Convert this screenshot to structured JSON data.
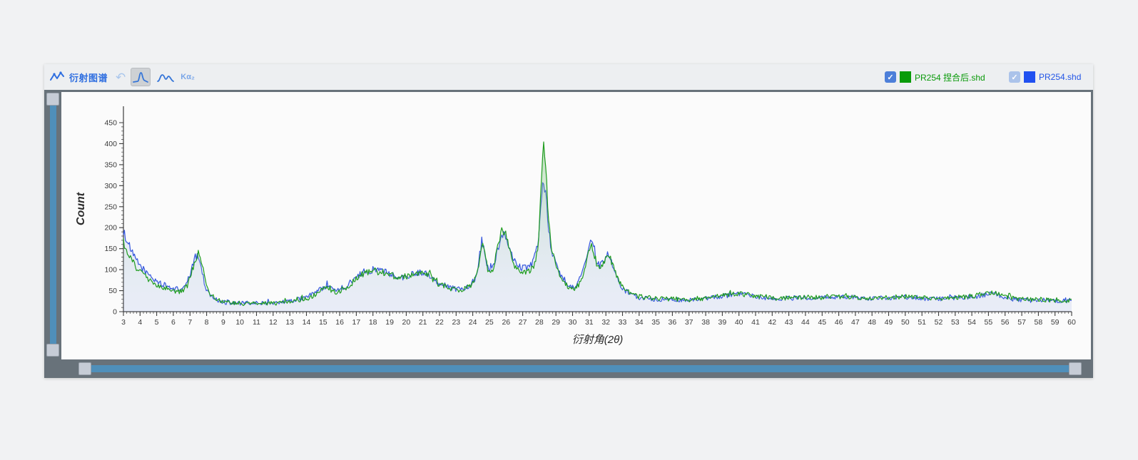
{
  "toolbar": {
    "title": "衍射图谱",
    "kalpha2_label": "Kα₂"
  },
  "icons": {
    "check": "✓",
    "undo": "↶"
  },
  "legend": [
    {
      "label": "PR254 捏合后.shd",
      "checked": true,
      "checkbox_color": "#4d7fd9",
      "swatch_color": "#0a9b0a",
      "text_color": "#0a9a0a"
    },
    {
      "label": "PR254.shd",
      "checked": true,
      "checkbox_color": "#abc3ea",
      "swatch_color": "#2050f0",
      "text_color": "#2255e6"
    }
  ],
  "chart_data": {
    "type": "line",
    "title": "",
    "xlabel": "衍射角(2θ)",
    "ylabel": "Count",
    "xlim": [
      3,
      60
    ],
    "ylim": [
      0,
      450
    ],
    "x_major_step": 1,
    "x_minor_step": 0.2,
    "y_major_step": 50,
    "y_minor_step": 10,
    "grid": false,
    "legend_position": "top-right",
    "series": [
      {
        "name": "PR254.shd",
        "color": "#3456dd",
        "fill": "rgba(70,105,220,0.10)",
        "noise": 8,
        "points": [
          [
            3,
            192
          ],
          [
            3.3,
            160
          ],
          [
            3.6,
            133
          ],
          [
            4,
            110
          ],
          [
            4.4,
            92
          ],
          [
            4.8,
            78
          ],
          [
            5.2,
            68
          ],
          [
            5.6,
            60
          ],
          [
            6,
            55
          ],
          [
            6.4,
            53
          ],
          [
            6.8,
            64
          ],
          [
            7.05,
            95
          ],
          [
            7.3,
            128
          ],
          [
            7.5,
            138
          ],
          [
            7.7,
            100
          ],
          [
            7.9,
            62
          ],
          [
            8.2,
            40
          ],
          [
            8.6,
            28
          ],
          [
            9,
            23
          ],
          [
            9.5,
            21
          ],
          [
            10,
            20
          ],
          [
            10.5,
            20
          ],
          [
            11,
            20
          ],
          [
            11.5,
            21
          ],
          [
            12,
            22
          ],
          [
            12.5,
            23
          ],
          [
            13,
            25
          ],
          [
            13.5,
            29
          ],
          [
            14,
            35
          ],
          [
            14.5,
            45
          ],
          [
            14.9,
            55
          ],
          [
            15.2,
            60
          ],
          [
            15.5,
            54
          ],
          [
            15.8,
            51
          ],
          [
            16.2,
            57
          ],
          [
            16.6,
            68
          ],
          [
            17,
            83
          ],
          [
            17.4,
            93
          ],
          [
            17.8,
            98
          ],
          [
            18.2,
            99
          ],
          [
            18.6,
            96
          ],
          [
            19,
            91
          ],
          [
            19.4,
            85
          ],
          [
            19.8,
            82
          ],
          [
            20.2,
            86
          ],
          [
            20.6,
            91
          ],
          [
            21,
            94
          ],
          [
            21.4,
            88
          ],
          [
            21.8,
            72
          ],
          [
            22.2,
            64
          ],
          [
            22.6,
            58
          ],
          [
            23,
            54
          ],
          [
            23.4,
            56
          ],
          [
            23.8,
            62
          ],
          [
            24.1,
            75
          ],
          [
            24.35,
            115
          ],
          [
            24.55,
            172
          ],
          [
            24.75,
            135
          ],
          [
            24.95,
            96
          ],
          [
            25.2,
            104
          ],
          [
            25.5,
            148
          ],
          [
            25.75,
            186
          ],
          [
            25.95,
            178
          ],
          [
            26.2,
            148
          ],
          [
            26.5,
            118
          ],
          [
            26.8,
            108
          ],
          [
            27.1,
            104
          ],
          [
            27.4,
            108
          ],
          [
            27.7,
            122
          ],
          [
            27.95,
            175
          ],
          [
            28.1,
            268
          ],
          [
            28.25,
            308
          ],
          [
            28.4,
            278
          ],
          [
            28.55,
            200
          ],
          [
            28.75,
            142
          ],
          [
            29,
            112
          ],
          [
            29.3,
            85
          ],
          [
            29.6,
            68
          ],
          [
            29.9,
            58
          ],
          [
            30.2,
            62
          ],
          [
            30.5,
            82
          ],
          [
            30.8,
            125
          ],
          [
            31.05,
            172
          ],
          [
            31.25,
            152
          ],
          [
            31.45,
            120
          ],
          [
            31.65,
            108
          ],
          [
            31.85,
            116
          ],
          [
            32.05,
            135
          ],
          [
            32.25,
            126
          ],
          [
            32.5,
            96
          ],
          [
            32.8,
            68
          ],
          [
            33.1,
            52
          ],
          [
            33.5,
            41
          ],
          [
            34,
            34
          ],
          [
            34.5,
            31
          ],
          [
            35,
            30
          ],
          [
            35.5,
            29
          ],
          [
            36,
            28
          ],
          [
            36.5,
            28
          ],
          [
            37,
            27
          ],
          [
            37.5,
            28
          ],
          [
            38,
            31
          ],
          [
            38.5,
            34
          ],
          [
            39,
            37
          ],
          [
            39.5,
            40
          ],
          [
            40,
            41
          ],
          [
            40.5,
            39
          ],
          [
            41,
            36
          ],
          [
            41.5,
            33
          ],
          [
            42,
            31
          ],
          [
            42.5,
            31
          ],
          [
            43,
            32
          ],
          [
            43.5,
            33
          ],
          [
            44,
            34
          ],
          [
            44.5,
            33
          ],
          [
            45,
            33
          ],
          [
            45.5,
            34
          ],
          [
            46,
            35
          ],
          [
            46.5,
            35
          ],
          [
            47,
            34
          ],
          [
            47.5,
            32
          ],
          [
            48,
            31
          ],
          [
            48.5,
            32
          ],
          [
            49,
            33
          ],
          [
            49.5,
            34
          ],
          [
            50,
            35
          ],
          [
            50.5,
            34
          ],
          [
            51,
            32
          ],
          [
            51.5,
            31
          ],
          [
            52,
            31
          ],
          [
            52.5,
            32
          ],
          [
            53,
            33
          ],
          [
            53.5,
            34
          ],
          [
            54,
            35
          ],
          [
            54.5,
            38
          ],
          [
            55,
            41
          ],
          [
            55.4,
            43
          ],
          [
            55.8,
            37
          ],
          [
            56.2,
            32
          ],
          [
            56.6,
            29
          ],
          [
            57,
            28
          ],
          [
            57.5,
            27
          ],
          [
            58,
            27
          ],
          [
            58.5,
            27
          ],
          [
            59,
            26
          ],
          [
            59.5,
            26
          ],
          [
            60,
            24
          ]
        ]
      },
      {
        "name": "PR254 捏合后.shd",
        "color": "#1f9c1f",
        "fill": "gradient-green",
        "noise": 8,
        "points": [
          [
            3,
            165
          ],
          [
            3.3,
            135
          ],
          [
            3.6,
            115
          ],
          [
            4,
            95
          ],
          [
            4.4,
            80
          ],
          [
            4.8,
            68
          ],
          [
            5.2,
            60
          ],
          [
            5.6,
            54
          ],
          [
            6,
            48
          ],
          [
            6.4,
            47
          ],
          [
            6.8,
            58
          ],
          [
            7.1,
            90
          ],
          [
            7.35,
            125
          ],
          [
            7.55,
            142
          ],
          [
            7.75,
            110
          ],
          [
            7.95,
            70
          ],
          [
            8.2,
            45
          ],
          [
            8.6,
            30
          ],
          [
            9,
            25
          ],
          [
            9.5,
            22
          ],
          [
            10,
            20
          ],
          [
            10.5,
            19
          ],
          [
            11,
            19
          ],
          [
            11.5,
            20
          ],
          [
            12,
            20
          ],
          [
            12.5,
            21
          ],
          [
            13,
            23
          ],
          [
            13.5,
            26
          ],
          [
            14,
            31
          ],
          [
            14.5,
            40
          ],
          [
            14.9,
            50
          ],
          [
            15.2,
            56
          ],
          [
            15.5,
            50
          ],
          [
            15.8,
            47
          ],
          [
            16.2,
            53
          ],
          [
            16.6,
            63
          ],
          [
            17,
            78
          ],
          [
            17.4,
            90
          ],
          [
            17.8,
            95
          ],
          [
            18.2,
            96
          ],
          [
            18.6,
            93
          ],
          [
            19,
            89
          ],
          [
            19.4,
            83
          ],
          [
            19.8,
            80
          ],
          [
            20.2,
            84
          ],
          [
            20.6,
            89
          ],
          [
            21,
            93
          ],
          [
            21.4,
            86
          ],
          [
            21.8,
            70
          ],
          [
            22.2,
            62
          ],
          [
            22.6,
            56
          ],
          [
            23,
            52
          ],
          [
            23.4,
            54
          ],
          [
            23.8,
            60
          ],
          [
            24.1,
            72
          ],
          [
            24.35,
            110
          ],
          [
            24.55,
            168
          ],
          [
            24.75,
            130
          ],
          [
            24.95,
            92
          ],
          [
            25.2,
            100
          ],
          [
            25.5,
            150
          ],
          [
            25.75,
            198
          ],
          [
            25.95,
            188
          ],
          [
            26.2,
            150
          ],
          [
            26.5,
            112
          ],
          [
            26.8,
            98
          ],
          [
            27.1,
            92
          ],
          [
            27.4,
            95
          ],
          [
            27.7,
            110
          ],
          [
            27.95,
            165
          ],
          [
            28.1,
            290
          ],
          [
            28.25,
            405
          ],
          [
            28.4,
            340
          ],
          [
            28.55,
            215
          ],
          [
            28.75,
            145
          ],
          [
            29,
            110
          ],
          [
            29.3,
            82
          ],
          [
            29.6,
            65
          ],
          [
            29.9,
            55
          ],
          [
            30.2,
            57
          ],
          [
            30.5,
            72
          ],
          [
            30.8,
            110
          ],
          [
            31.05,
            158
          ],
          [
            31.25,
            145
          ],
          [
            31.45,
            115
          ],
          [
            31.65,
            103
          ],
          [
            31.85,
            112
          ],
          [
            32.05,
            140
          ],
          [
            32.25,
            132
          ],
          [
            32.5,
            100
          ],
          [
            32.8,
            72
          ],
          [
            33.1,
            55
          ],
          [
            33.5,
            43
          ],
          [
            34,
            36
          ],
          [
            34.5,
            33
          ],
          [
            35,
            32
          ],
          [
            35.5,
            31
          ],
          [
            36,
            30
          ],
          [
            36.5,
            29
          ],
          [
            37,
            28
          ],
          [
            37.5,
            29
          ],
          [
            38,
            32
          ],
          [
            38.5,
            35
          ],
          [
            39,
            38
          ],
          [
            39.5,
            41
          ],
          [
            40,
            42
          ],
          [
            40.5,
            40
          ],
          [
            41,
            37
          ],
          [
            41.5,
            34
          ],
          [
            42,
            32
          ],
          [
            42.5,
            32
          ],
          [
            43,
            33
          ],
          [
            43.5,
            34
          ],
          [
            44,
            35
          ],
          [
            44.5,
            34
          ],
          [
            45,
            34
          ],
          [
            45.5,
            35
          ],
          [
            46,
            36
          ],
          [
            46.5,
            36
          ],
          [
            47,
            35
          ],
          [
            47.5,
            33
          ],
          [
            48,
            32
          ],
          [
            48.5,
            33
          ],
          [
            49,
            34
          ],
          [
            49.5,
            35
          ],
          [
            50,
            36
          ],
          [
            50.5,
            35
          ],
          [
            51,
            33
          ],
          [
            51.5,
            32
          ],
          [
            52,
            32
          ],
          [
            52.5,
            33
          ],
          [
            53,
            34
          ],
          [
            53.5,
            35
          ],
          [
            54,
            37
          ],
          [
            54.5,
            41
          ],
          [
            55,
            45
          ],
          [
            55.4,
            47
          ],
          [
            55.8,
            40
          ],
          [
            56.2,
            34
          ],
          [
            56.6,
            31
          ],
          [
            57,
            30
          ],
          [
            57.5,
            29
          ],
          [
            58,
            29
          ],
          [
            58.5,
            28
          ],
          [
            59,
            28
          ],
          [
            59.5,
            27
          ],
          [
            60,
            25
          ]
        ]
      }
    ]
  }
}
